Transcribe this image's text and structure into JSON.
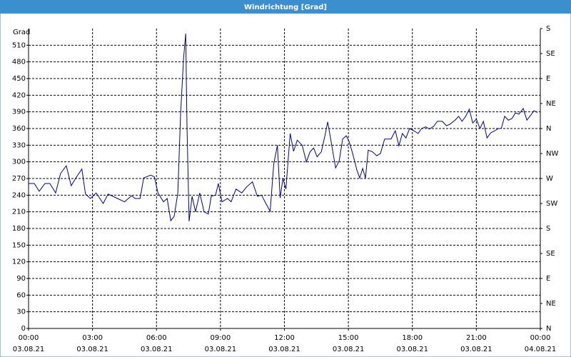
{
  "chart_data": {
    "type": "line",
    "title": "Windrichtung [Grad]",
    "ylabel": "Grad",
    "x": [
      0,
      0.27,
      0.5,
      0.77,
      1,
      1.27,
      1.5,
      1.77,
      2,
      2.27,
      2.5,
      2.67,
      2.9,
      3.17,
      3.5,
      3.73,
      4.17,
      4.5,
      4.83,
      5,
      5.23,
      5.4,
      5.73,
      5.9,
      6.07,
      6.33,
      6.5,
      6.67,
      6.83,
      7,
      7.13,
      7.27,
      7.37,
      7.43,
      7.53,
      7.67,
      7.83,
      8.03,
      8.23,
      8.43,
      8.57,
      8.77,
      8.9,
      9.07,
      9.33,
      9.5,
      9.73,
      10,
      10.23,
      10.5,
      10.73,
      10.93,
      11.13,
      11.33,
      11.5,
      11.67,
      11.8,
      11.93,
      12.07,
      12.27,
      12.43,
      12.6,
      12.83,
      13.03,
      13.2,
      13.37,
      13.53,
      13.73,
      13.9,
      14.03,
      14.2,
      14.4,
      14.57,
      14.73,
      14.9,
      15.03,
      15.2,
      15.4,
      15.53,
      15.67,
      15.8,
      15.93,
      16.13,
      16.33,
      16.5,
      16.7,
      17,
      17.2,
      17.37,
      17.53,
      17.7,
      17.87,
      18.07,
      18.27,
      18.43,
      18.63,
      18.8,
      19,
      19.17,
      19.4,
      19.6,
      19.77,
      20,
      20.17,
      20.33,
      20.5,
      20.67,
      20.83,
      21,
      21.17,
      21.33,
      21.5,
      21.67,
      21.87,
      22.03,
      22.17,
      22.33,
      22.5,
      22.67,
      22.83,
      23,
      23.2,
      23.37,
      23.53,
      23.7,
      23.87
    ],
    "series": [
      {
        "color": "#00008b",
        "values": [
          261,
          261,
          247,
          261,
          261,
          244,
          279,
          293,
          257,
          274,
          287,
          242,
          234,
          244,
          225,
          242,
          234,
          228,
          239,
          234,
          234,
          271,
          276,
          273,
          244,
          228,
          234,
          194,
          202,
          244,
          386,
          486,
          531,
          366,
          193,
          238,
          210,
          244,
          210,
          206,
          238,
          240,
          261,
          228,
          234,
          228,
          251,
          244,
          255,
          264,
          238,
          240,
          225,
          211,
          296,
          330,
          235,
          270,
          251,
          351,
          319,
          339,
          330,
          300,
          318,
          325,
          309,
          318,
          347,
          372,
          334,
          289,
          302,
          341,
          347,
          337,
          315,
          285,
          271,
          288,
          271,
          321,
          318,
          311,
          315,
          341,
          341,
          356,
          329,
          351,
          343,
          360,
          356,
          351,
          360,
          363,
          359,
          364,
          373,
          373,
          365,
          368,
          375,
          382,
          373,
          382,
          395,
          370,
          377,
          360,
          373,
          343,
          352,
          356,
          360,
          360,
          382,
          375,
          378,
          388,
          386,
          396,
          375,
          383,
          392,
          389
        ]
      }
    ],
    "xlim": [
      0,
      24
    ],
    "xticks": [
      {
        "value": 0,
        "label": "00:00"
      },
      {
        "value": 3,
        "label": "03:00"
      },
      {
        "value": 6,
        "label": "06:00"
      },
      {
        "value": 9,
        "label": "09:00"
      },
      {
        "value": 12,
        "label": "12:00"
      },
      {
        "value": 15,
        "label": "15:00"
      },
      {
        "value": 18,
        "label": "18:00"
      },
      {
        "value": 21,
        "label": "21:00"
      },
      {
        "value": 24,
        "label": "00:00"
      }
    ],
    "xtick_dates": [
      "03.08.21",
      "03.08.21",
      "03.08.21",
      "03.08.21",
      "03.08.21",
      "03.08.21",
      "03.08.21",
      "03.08.21",
      "04.08.21"
    ],
    "ylim": [
      0,
      540
    ],
    "yticks": [
      0,
      30,
      60,
      90,
      120,
      150,
      180,
      210,
      240,
      270,
      300,
      330,
      360,
      390,
      420,
      450,
      480,
      510
    ],
    "y2lim": [
      0,
      540
    ],
    "y2ticks": [
      {
        "value": 0,
        "label": "N"
      },
      {
        "value": 45,
        "label": "NE"
      },
      {
        "value": 90,
        "label": "E"
      },
      {
        "value": 135,
        "label": "SE"
      },
      {
        "value": 180,
        "label": "S"
      },
      {
        "value": 225,
        "label": "SW"
      },
      {
        "value": 270,
        "label": "W"
      },
      {
        "value": 315,
        "label": "NW"
      },
      {
        "value": 360,
        "label": "N"
      },
      {
        "value": 405,
        "label": "NE"
      },
      {
        "value": 450,
        "label": "E"
      },
      {
        "value": 495,
        "label": "SE"
      },
      {
        "value": 540,
        "label": "S"
      }
    ],
    "grid": true
  }
}
